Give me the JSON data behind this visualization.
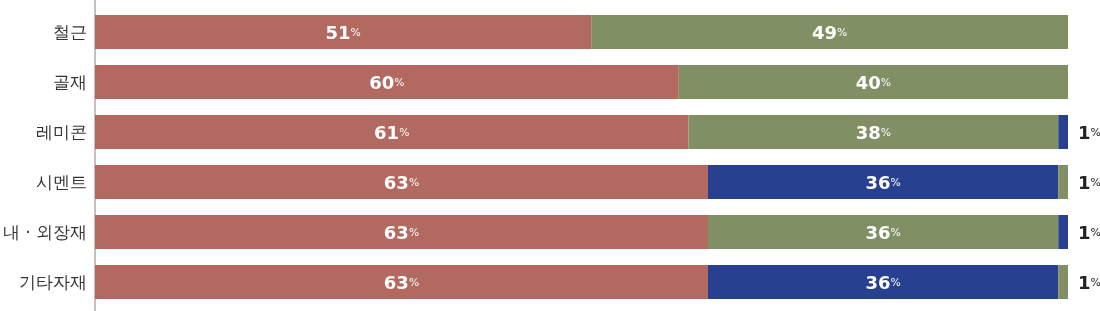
{
  "chart_data": {
    "type": "bar",
    "orientation": "horizontal",
    "stacked": true,
    "categories": [
      "철근",
      "골재",
      "레미콘",
      "시멘트",
      "내 · 외장재",
      "기타자재"
    ],
    "series": [
      {
        "colors": [
          "#b26a60",
          "#b26a60",
          "#b26a60",
          "#b26a60",
          "#b26a60",
          "#b26a60"
        ],
        "values": [
          51,
          60,
          61,
          63,
          63,
          63
        ],
        "value_labels": [
          "51%",
          "60%",
          "61%",
          "63%",
          "63%",
          "63%"
        ]
      },
      {
        "colors": [
          "#818f64",
          "#818f64",
          "#818f64",
          "#27408f",
          "#818f64",
          "#27408f"
        ],
        "values": [
          49,
          40,
          38,
          36,
          36,
          36
        ],
        "value_labels": [
          "49%",
          "40%",
          "38%",
          "36%",
          "36%",
          "36%"
        ]
      },
      {
        "colors": [
          null,
          null,
          "#27408f",
          "#818f64",
          "#27408f",
          "#818f64"
        ],
        "values": [
          null,
          null,
          1,
          1,
          1,
          1
        ],
        "value_labels": [
          null,
          null,
          "1%",
          "1%",
          "1%",
          "1%"
        ]
      }
    ]
  }
}
